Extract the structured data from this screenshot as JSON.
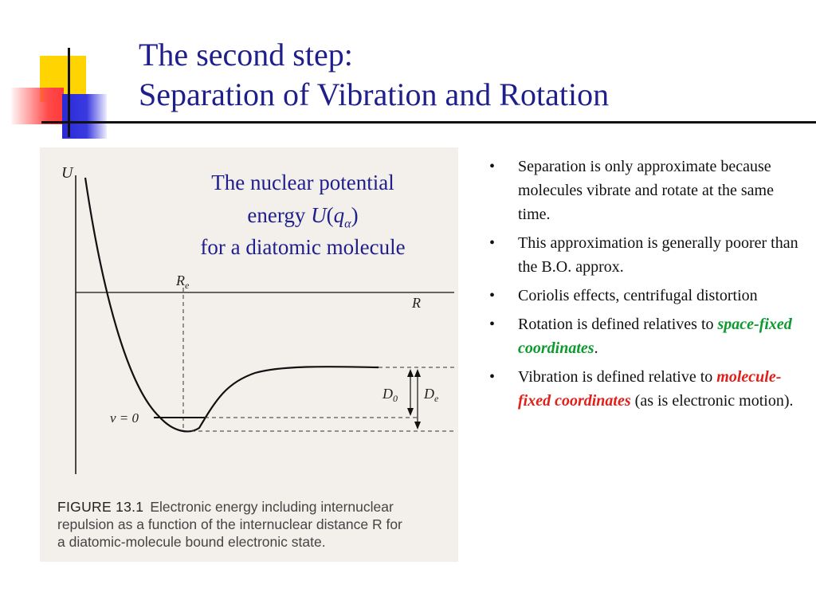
{
  "title": {
    "line1": "The second step:",
    "line2": "Separation of Vibration and Rotation"
  },
  "figure": {
    "annotation": {
      "line1": "The nuclear potential",
      "line2_prefix": "energy ",
      "line2_var": "U",
      "line2_open": "(",
      "line2_sub_var": "q",
      "line2_sub_index": "α",
      "line2_close": ")",
      "line3": "for a diatomic molecule"
    },
    "labels": {
      "y_axis": "U",
      "x_axis": "R",
      "re_main": "R",
      "re_sub": "e",
      "v0": "v = 0",
      "d0_main": "D",
      "d0_sub": "0",
      "de_main": "D",
      "de_sub": "e"
    },
    "caption": {
      "figure_number": "FIGURE 13.1",
      "line1": "Electronic energy including internuclear",
      "line2": "repulsion as a function of the internuclear distance R for",
      "line3": "a diatomic-molecule bound electronic state."
    }
  },
  "bullets": [
    {
      "text": "Separation is only approximate because molecules vibrate and rotate at the same time."
    },
    {
      "text": "This approximation is generally poorer than the B.O. approx."
    },
    {
      "text": "Coriolis effects, centrifugal distortion"
    },
    {
      "text_before": "Rotation is defined relatives to ",
      "highlight": "space-fixed coordinates",
      "text_after": "."
    },
    {
      "text_before": "Vibration is defined relative to ",
      "highlight": "molecule-fixed coordinates",
      "text_after": " (as is electronic motion)."
    }
  ],
  "colors": {
    "title": "#1f1f8c",
    "space_fixed": "#0d9a2e",
    "molecule_fixed": "#e0201a",
    "deco_yellow": "#ffd400",
    "deco_red": "#ff3a3a",
    "deco_blue": "#2a2ad8"
  }
}
